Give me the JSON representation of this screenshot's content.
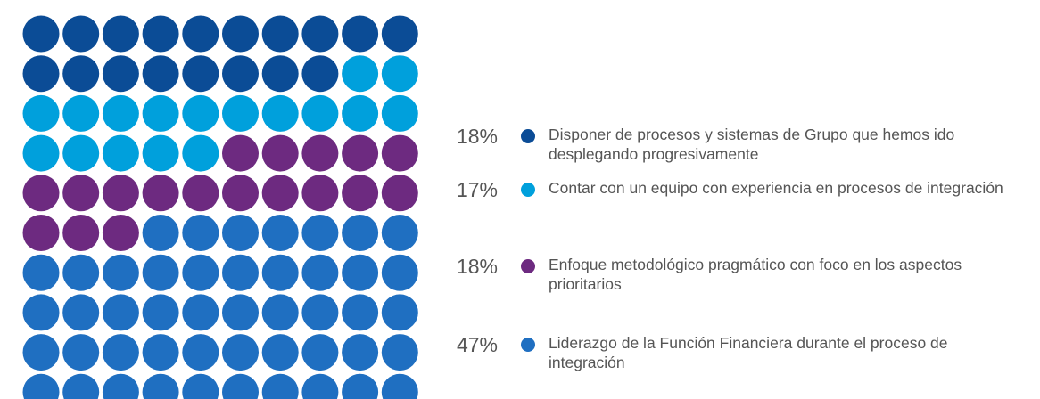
{
  "chart_data": {
    "type": "waffle",
    "rows": 10,
    "columns": 10,
    "series": [
      {
        "name": "Disponer de procesos y sistemas de Grupo que hemos ido desplegando progresivamente",
        "color": "#0b4c96",
        "values": [
          18
        ],
        "value_labels": [
          "18%"
        ]
      },
      {
        "name": "Contar con un equipo con experiencia en procesos de integración",
        "color": "#00a0dc",
        "values": [
          17
        ],
        "value_labels": [
          "17%"
        ]
      },
      {
        "name": "Enfoque metodológico pragmático con foco en los aspectos prioritarios",
        "color": "#6d2a80",
        "values": [
          18
        ],
        "value_labels": [
          "18%"
        ]
      },
      {
        "name": "Liderazgo de la Función Financiera durante el proceso de integración",
        "color": "#1f6fc1",
        "values": [
          47
        ],
        "value_labels": [
          "47%"
        ]
      }
    ]
  }
}
